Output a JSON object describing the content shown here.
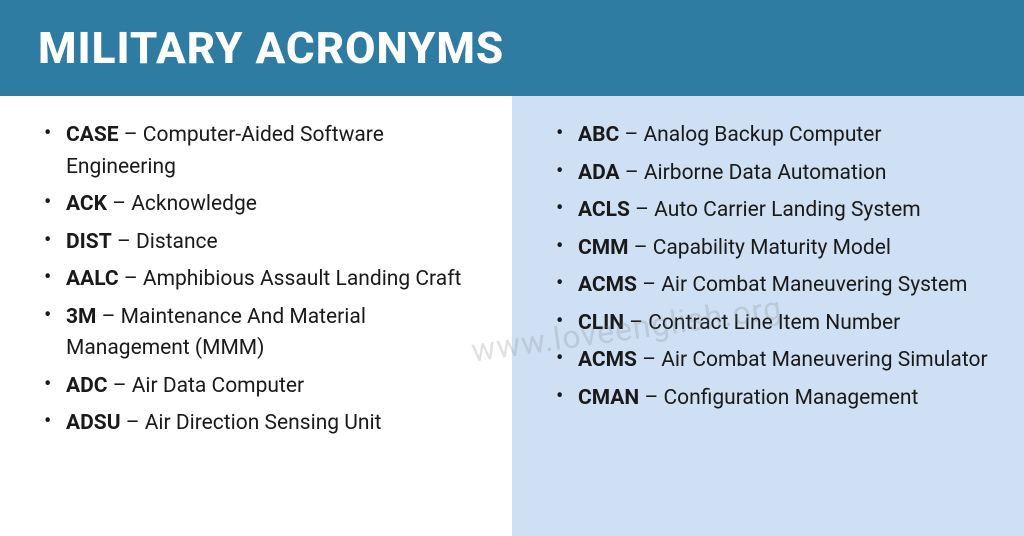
{
  "header": {
    "title": "MILITARY ACRONYMS",
    "bg_color": "#2f7ca3",
    "text_color": "#ffffff",
    "font_size": 44
  },
  "layout": {
    "left_bg": "#ffffff",
    "right_bg": "#cfe0f5",
    "item_font_size": 21,
    "text_color": "#1a1a1a",
    "bullet_color": "#1a1a1a",
    "separator": " – "
  },
  "left_column": [
    {
      "acronym": "CASE",
      "definition": "Computer-Aided Software Engineering"
    },
    {
      "acronym": "ACK",
      "definition": "Acknowledge"
    },
    {
      "acronym": "DIST",
      "definition": "Distance"
    },
    {
      "acronym": "AALC",
      "definition": "Amphibious Assault Landing Craft"
    },
    {
      "acronym": "3M",
      "definition": "Maintenance And Material Management (MMM)"
    },
    {
      "acronym": "ADC",
      "definition": "Air Data Computer"
    },
    {
      "acronym": "ADSU",
      "definition": "Air Direction Sensing Unit"
    }
  ],
  "right_column": [
    {
      "acronym": "ABC",
      "definition": "Analog Backup Computer"
    },
    {
      "acronym": "ADA",
      "definition": "Airborne Data Automation"
    },
    {
      "acronym": "ACLS",
      "definition": "Auto Carrier Landing System"
    },
    {
      "acronym": "CMM",
      "definition": "Capability Maturity Model"
    },
    {
      "acronym": "ACMS",
      "definition": "Air Combat Maneuvering System"
    },
    {
      "acronym": "CLIN",
      "definition": "Contract Line Item Number"
    },
    {
      "acronym": "ACMS",
      "definition": "Air Combat Maneuvering Simulator"
    },
    {
      "acronym": "CMAN",
      "definition": "Configuration Management"
    }
  ],
  "watermark": {
    "text": "www.loveenglish.org"
  }
}
